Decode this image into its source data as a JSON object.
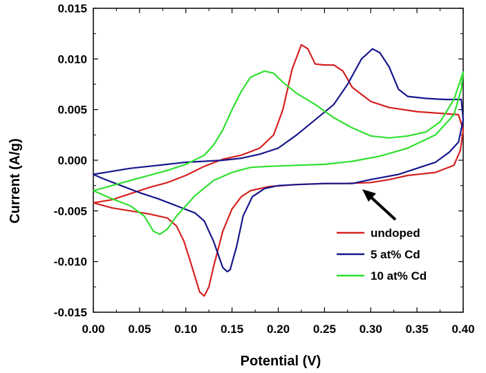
{
  "chart_data": {
    "type": "line",
    "title": "",
    "xlabel": "Potential  (V)",
    "ylabel": "Current  (A/g)",
    "xlim": [
      0.0,
      0.4
    ],
    "ylim": [
      -0.015,
      0.015
    ],
    "x_ticks": [
      "0.00",
      "0.05",
      "0.10",
      "0.15",
      "0.20",
      "0.25",
      "0.30",
      "0.35",
      "0.40"
    ],
    "y_ticks": [
      "0.015",
      "0.010",
      "0.005",
      "0.000",
      "-0.005",
      "-0.010",
      "-0.015"
    ],
    "grid": false,
    "legend_position": "bottom-right",
    "series": [
      {
        "name": "undoped",
        "color": "#d62020",
        "points": [
          [
            0.0,
            -0.0042
          ],
          [
            0.02,
            -0.0039
          ],
          [
            0.04,
            -0.0033
          ],
          [
            0.06,
            -0.0027
          ],
          [
            0.08,
            -0.0022
          ],
          [
            0.1,
            -0.0015
          ],
          [
            0.12,
            -0.0006
          ],
          [
            0.14,
            0.0001
          ],
          [
            0.16,
            0.0005
          ],
          [
            0.18,
            0.0012
          ],
          [
            0.195,
            0.0025
          ],
          [
            0.205,
            0.005
          ],
          [
            0.215,
            0.009
          ],
          [
            0.225,
            0.0114
          ],
          [
            0.232,
            0.011
          ],
          [
            0.24,
            0.0095
          ],
          [
            0.25,
            0.0094
          ],
          [
            0.26,
            0.0094
          ],
          [
            0.27,
            0.0088
          ],
          [
            0.28,
            0.0072
          ],
          [
            0.3,
            0.0058
          ],
          [
            0.32,
            0.0052
          ],
          [
            0.35,
            0.0048
          ],
          [
            0.38,
            0.0046
          ],
          [
            0.395,
            0.0045
          ],
          [
            0.4,
            0.003
          ],
          [
            0.397,
            0.001
          ],
          [
            0.39,
            -0.0005
          ],
          [
            0.37,
            -0.0012
          ],
          [
            0.34,
            -0.0015
          ],
          [
            0.32,
            -0.0019
          ],
          [
            0.3,
            -0.0022
          ],
          [
            0.27,
            -0.0023
          ],
          [
            0.25,
            -0.0023
          ],
          [
            0.22,
            -0.0024
          ],
          [
            0.19,
            -0.0026
          ],
          [
            0.17,
            -0.003
          ],
          [
            0.16,
            -0.0036
          ],
          [
            0.15,
            -0.0048
          ],
          [
            0.14,
            -0.007
          ],
          [
            0.13,
            -0.0105
          ],
          [
            0.125,
            -0.0125
          ],
          [
            0.12,
            -0.0134
          ],
          [
            0.115,
            -0.013
          ],
          [
            0.105,
            -0.01
          ],
          [
            0.098,
            -0.008
          ],
          [
            0.09,
            -0.0065
          ],
          [
            0.08,
            -0.0057
          ],
          [
            0.06,
            -0.0053
          ],
          [
            0.04,
            -0.005
          ],
          [
            0.02,
            -0.0047
          ],
          [
            0.0,
            -0.0042
          ]
        ]
      },
      {
        "name": "5 at% Cd",
        "color": "#16168c",
        "points": [
          [
            0.0,
            -0.0014
          ],
          [
            0.02,
            -0.0011
          ],
          [
            0.04,
            -0.0008
          ],
          [
            0.06,
            -0.0006
          ],
          [
            0.08,
            -0.0004
          ],
          [
            0.1,
            -0.0002
          ],
          [
            0.12,
            -0.0001
          ],
          [
            0.14,
            0.0
          ],
          [
            0.16,
            0.0002
          ],
          [
            0.18,
            0.0006
          ],
          [
            0.2,
            0.0012
          ],
          [
            0.22,
            0.0025
          ],
          [
            0.24,
            0.004
          ],
          [
            0.26,
            0.0055
          ],
          [
            0.275,
            0.0075
          ],
          [
            0.29,
            0.01
          ],
          [
            0.302,
            0.011
          ],
          [
            0.31,
            0.0106
          ],
          [
            0.32,
            0.0092
          ],
          [
            0.33,
            0.007
          ],
          [
            0.34,
            0.0063
          ],
          [
            0.36,
            0.0061
          ],
          [
            0.38,
            0.006
          ],
          [
            0.398,
            0.006
          ],
          [
            0.4,
            0.004
          ],
          [
            0.395,
            0.0018
          ],
          [
            0.385,
            0.0008
          ],
          [
            0.37,
            -0.0002
          ],
          [
            0.35,
            -0.0008
          ],
          [
            0.33,
            -0.0014
          ],
          [
            0.3,
            -0.0019
          ],
          [
            0.28,
            -0.0023
          ],
          [
            0.25,
            -0.0023
          ],
          [
            0.22,
            -0.0024
          ],
          [
            0.2,
            -0.0025
          ],
          [
            0.185,
            -0.0028
          ],
          [
            0.172,
            -0.0036
          ],
          [
            0.162,
            -0.0055
          ],
          [
            0.155,
            -0.0085
          ],
          [
            0.148,
            -0.0108
          ],
          [
            0.145,
            -0.011
          ],
          [
            0.14,
            -0.0106
          ],
          [
            0.13,
            -0.008
          ],
          [
            0.12,
            -0.006
          ],
          [
            0.11,
            -0.0052
          ],
          [
            0.09,
            -0.0045
          ],
          [
            0.07,
            -0.0038
          ],
          [
            0.05,
            -0.0032
          ],
          [
            0.03,
            -0.0025
          ],
          [
            0.01,
            -0.0018
          ],
          [
            0.0,
            -0.0014
          ]
        ]
      },
      {
        "name": "10 at% Cd",
        "color": "#2ee02e",
        "points": [
          [
            0.0,
            -0.003
          ],
          [
            0.02,
            -0.0025
          ],
          [
            0.04,
            -0.002
          ],
          [
            0.06,
            -0.0015
          ],
          [
            0.08,
            -0.001
          ],
          [
            0.1,
            -0.0004
          ],
          [
            0.12,
            0.0005
          ],
          [
            0.13,
            0.0015
          ],
          [
            0.14,
            0.003
          ],
          [
            0.15,
            0.005
          ],
          [
            0.16,
            0.0068
          ],
          [
            0.17,
            0.0082
          ],
          [
            0.185,
            0.0088
          ],
          [
            0.195,
            0.0086
          ],
          [
            0.205,
            0.0077
          ],
          [
            0.22,
            0.0066
          ],
          [
            0.24,
            0.0055
          ],
          [
            0.26,
            0.0042
          ],
          [
            0.28,
            0.0032
          ],
          [
            0.3,
            0.0024
          ],
          [
            0.32,
            0.0022
          ],
          [
            0.34,
            0.0024
          ],
          [
            0.36,
            0.0028
          ],
          [
            0.375,
            0.0038
          ],
          [
            0.39,
            0.006
          ],
          [
            0.4,
            0.0087
          ],
          [
            0.398,
            0.007
          ],
          [
            0.39,
            0.0045
          ],
          [
            0.37,
            0.0025
          ],
          [
            0.34,
            0.0012
          ],
          [
            0.31,
            0.0004
          ],
          [
            0.28,
            -0.0001
          ],
          [
            0.25,
            -0.0004
          ],
          [
            0.22,
            -0.0005
          ],
          [
            0.19,
            -0.0006
          ],
          [
            0.17,
            -0.0007
          ],
          [
            0.15,
            -0.0012
          ],
          [
            0.13,
            -0.002
          ],
          [
            0.11,
            -0.0035
          ],
          [
            0.09,
            -0.0055
          ],
          [
            0.08,
            -0.0068
          ],
          [
            0.072,
            -0.0073
          ],
          [
            0.065,
            -0.007
          ],
          [
            0.055,
            -0.0055
          ],
          [
            0.04,
            -0.0045
          ],
          [
            0.02,
            -0.0038
          ],
          [
            0.0,
            -0.003
          ]
        ]
      }
    ]
  }
}
